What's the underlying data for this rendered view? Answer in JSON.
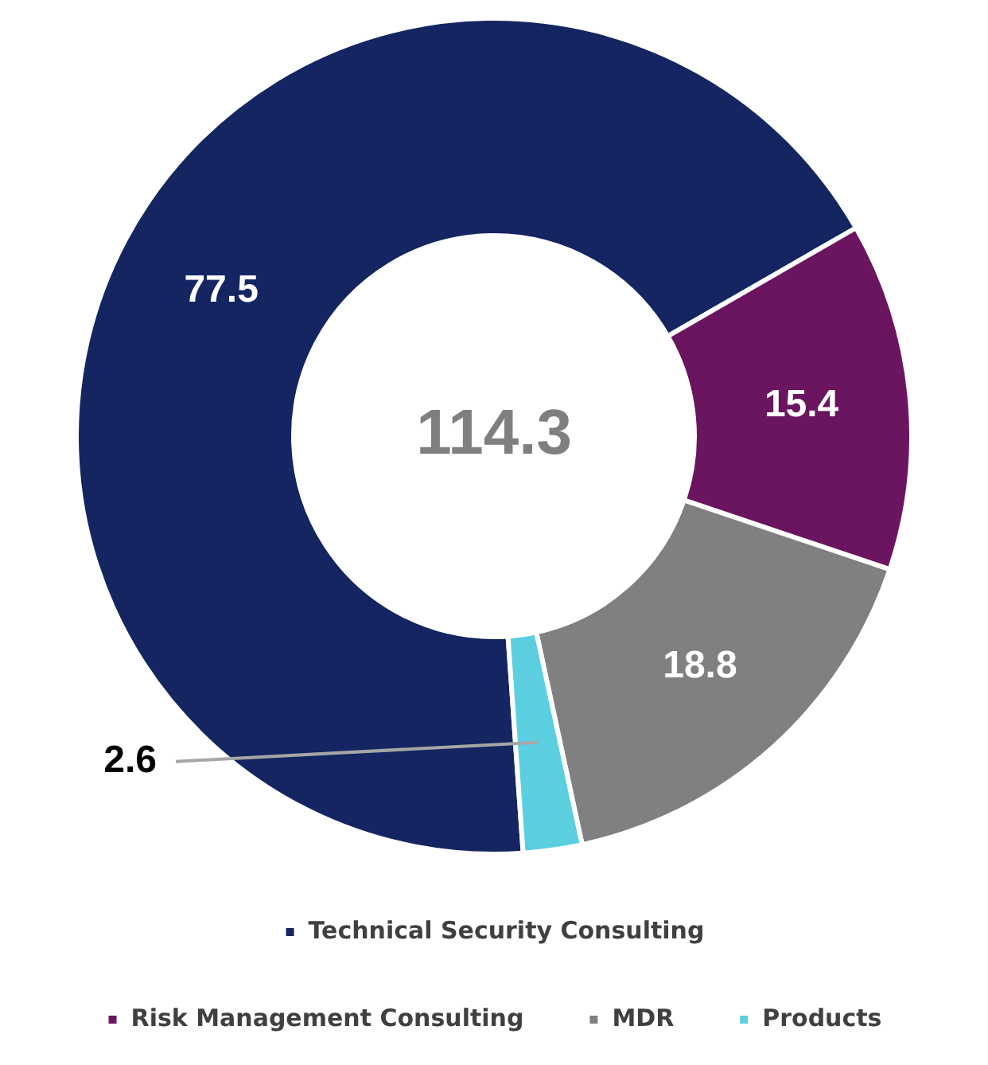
{
  "chart_data": {
    "type": "donut",
    "categories": [
      "Technical Security Consulting",
      "Risk Management Consulting",
      "MDR",
      "Products"
    ],
    "values": [
      77.5,
      15.4,
      18.8,
      2.6
    ],
    "colors": [
      "#142562",
      "#6b1560",
      "#808080",
      "#5bcfe0"
    ],
    "data_labels": true,
    "legend": "bottom",
    "annotations": [
      "114.3"
    ]
  }
}
